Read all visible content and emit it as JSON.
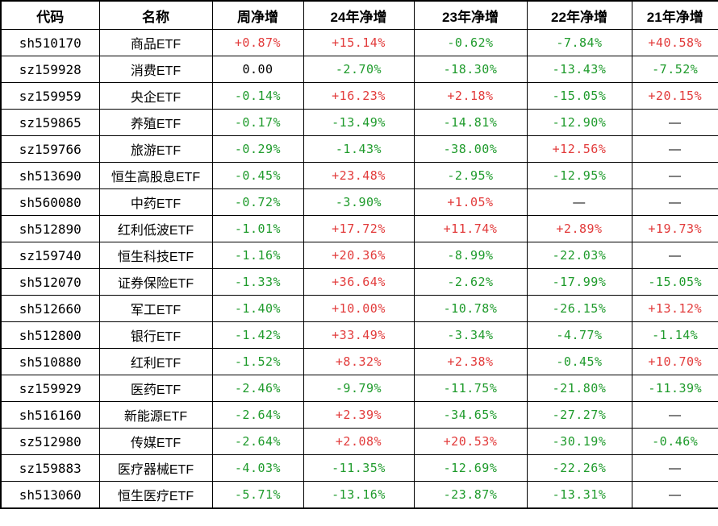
{
  "colors": {
    "positive": "#e23b3b",
    "negative": "#1f9b2c",
    "neutral": "#000000"
  },
  "chart_data": {
    "type": "table",
    "title": "",
    "columns": [
      "代码",
      "名称",
      "周净增",
      "24年净增",
      "23年净增",
      "22年净增",
      "21年净增"
    ],
    "rows": [
      {
        "code": "sh510170",
        "name": "商品ETF",
        "values": [
          "+0.87%",
          "+15.14%",
          "-0.62%",
          "-7.84%",
          "+40.58%"
        ]
      },
      {
        "code": "sz159928",
        "name": "消费ETF",
        "values": [
          "0.00",
          "-2.70%",
          "-18.30%",
          "-13.43%",
          "-7.52%"
        ]
      },
      {
        "code": "sz159959",
        "name": "央企ETF",
        "values": [
          "-0.14%",
          "+16.23%",
          "+2.18%",
          "-15.05%",
          "+20.15%"
        ]
      },
      {
        "code": "sz159865",
        "name": "养殖ETF",
        "values": [
          "-0.17%",
          "-13.49%",
          "-14.81%",
          "-12.90%",
          "—"
        ]
      },
      {
        "code": "sz159766",
        "name": "旅游ETF",
        "values": [
          "-0.29%",
          "-1.43%",
          "-38.00%",
          "+12.56%",
          "—"
        ]
      },
      {
        "code": "sh513690",
        "name": "恒生高股息ETF",
        "values": [
          "-0.45%",
          "+23.48%",
          "-2.95%",
          "-12.95%",
          "—"
        ]
      },
      {
        "code": "sh560080",
        "name": "中药ETF",
        "values": [
          "-0.72%",
          "-3.90%",
          "+1.05%",
          "—",
          "—"
        ]
      },
      {
        "code": "sh512890",
        "name": "红利低波ETF",
        "values": [
          "-1.01%",
          "+17.72%",
          "+11.74%",
          "+2.89%",
          "+19.73%"
        ]
      },
      {
        "code": "sz159740",
        "name": "恒生科技ETF",
        "values": [
          "-1.16%",
          "+20.36%",
          "-8.99%",
          "-22.03%",
          "—"
        ]
      },
      {
        "code": "sh512070",
        "name": "证券保险ETF",
        "values": [
          "-1.33%",
          "+36.64%",
          "-2.62%",
          "-17.99%",
          "-15.05%"
        ]
      },
      {
        "code": "sh512660",
        "name": "军工ETF",
        "values": [
          "-1.40%",
          "+10.00%",
          "-10.78%",
          "-26.15%",
          "+13.12%"
        ]
      },
      {
        "code": "sh512800",
        "name": "银行ETF",
        "values": [
          "-1.42%",
          "+33.49%",
          "-3.34%",
          "-4.77%",
          "-1.14%"
        ]
      },
      {
        "code": "sh510880",
        "name": "红利ETF",
        "values": [
          "-1.52%",
          "+8.32%",
          "+2.38%",
          "-0.45%",
          "+10.70%"
        ]
      },
      {
        "code": "sz159929",
        "name": "医药ETF",
        "values": [
          "-2.46%",
          "-9.79%",
          "-11.75%",
          "-21.80%",
          "-11.39%"
        ]
      },
      {
        "code": "sh516160",
        "name": "新能源ETF",
        "values": [
          "-2.64%",
          "+2.39%",
          "-34.65%",
          "-27.27%",
          "—"
        ]
      },
      {
        "code": "sz512980",
        "name": "传媒ETF",
        "values": [
          "-2.64%",
          "+2.08%",
          "+20.53%",
          "-30.19%",
          "-0.46%"
        ]
      },
      {
        "code": "sz159883",
        "name": "医疗器械ETF",
        "values": [
          "-4.03%",
          "-11.35%",
          "-12.69%",
          "-22.26%",
          "—"
        ]
      },
      {
        "code": "sh513060",
        "name": "恒生医疗ETF",
        "values": [
          "-5.71%",
          "-13.16%",
          "-23.87%",
          "-13.31%",
          "—"
        ]
      }
    ]
  }
}
